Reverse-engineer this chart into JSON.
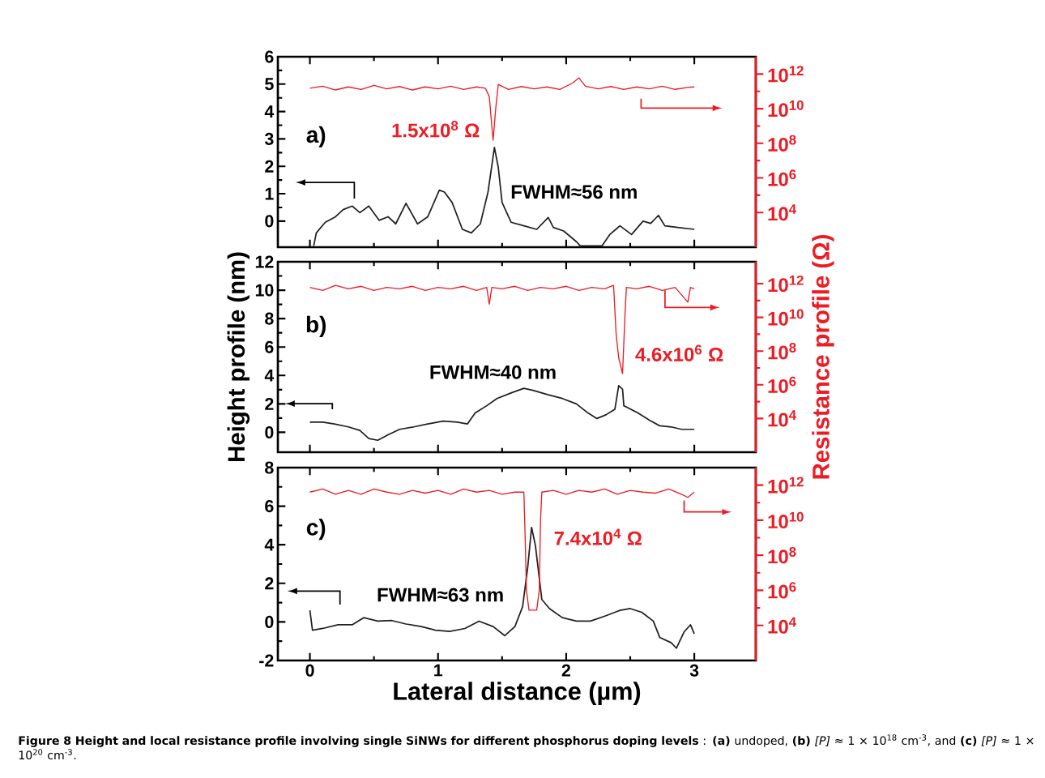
{
  "chart_data": [
    {
      "type": "line",
      "log": "y2",
      "xlim": [
        -0.25,
        3.48
      ],
      "xticks": [
        0,
        1,
        2,
        3
      ],
      "ylim": [
        -0.95,
        6
      ],
      "yticks": [
        0,
        1,
        2,
        3,
        4,
        5,
        6
      ],
      "y2lim": [
        100,
        10000000000000.0
      ],
      "y2ticks": [
        {
          "value": 10000,
          "label": "10$^{4}$"
        },
        {
          "value": 1000000,
          "label": "10$^{6}$"
        },
        {
          "value": 100000000,
          "label": "10$^{8}$"
        },
        {
          "value": 10000000000,
          "label": "10$^{10}$"
        },
        {
          "value": 1000000000000,
          "label": "10$^{12}$"
        }
      ],
      "tick_labels": "y",
      "marker": "none",
      "grid": false,
      "annotations": [
        "a)",
        "1.5x10$^{8}$ Ω",
        "FWHM≈56 nm"
      ],
      "series": [
        {
          "color": "#231f20",
          "x": [
            0.03,
            0.05,
            0.12,
            0.2,
            0.26,
            0.33,
            0.39,
            0.46,
            0.54,
            0.61,
            0.67,
            0.75,
            0.84,
            0.92,
            1.01,
            1.05,
            1.11,
            1.19,
            1.26,
            1.33,
            1.39,
            1.44,
            1.47,
            1.5,
            1.57,
            1.67,
            1.77,
            1.86,
            1.9,
            1.98,
            2.08,
            2.11,
            2.28,
            2.34,
            2.42,
            2.51,
            2.6,
            2.66,
            2.72,
            2.77,
            2.87,
            3.0
          ],
          "values": [
            -0.9,
            -0.43,
            -0.04,
            0.16,
            0.42,
            0.55,
            0.31,
            0.55,
            0.03,
            0.16,
            -0.1,
            0.65,
            -0.1,
            0.16,
            1.13,
            1.06,
            0.68,
            -0.3,
            -0.43,
            -0.1,
            1.06,
            2.69,
            1.97,
            0.68,
            -0.04,
            -0.17,
            -0.3,
            0.13,
            -0.23,
            -0.36,
            -0.75,
            -0.9,
            -0.9,
            -0.49,
            -0.17,
            -0.49,
            0,
            -0.08,
            0.21,
            -0.17,
            -0.23,
            -0.3
          ]
        },
        {
          "color": "#ed1c24",
          "axis": "y2",
          "x": [
            0,
            0.1,
            0.2,
            0.3,
            0.4,
            0.5,
            0.6,
            0.7,
            0.8,
            0.9,
            1.0,
            1.1,
            1.2,
            1.3,
            1.37,
            1.4,
            1.42,
            1.43,
            1.45,
            1.47,
            1.55,
            1.65,
            1.75,
            1.85,
            1.95,
            2.05,
            2.1,
            2.15,
            2.25,
            2.35,
            2.45,
            2.55,
            2.65,
            2.75,
            2.85,
            2.95,
            3.0
          ],
          "values": [
            150000000000.0,
            200000000000.0,
            120000000000.0,
            180000000000.0,
            130000000000.0,
            220000000000.0,
            140000000000.0,
            190000000000.0,
            120000000000.0,
            180000000000.0,
            140000000000.0,
            200000000000.0,
            130000000000.0,
            180000000000.0,
            150000000000.0,
            50000000000.0,
            1000000000.0,
            150000000.0,
            10000000000.0,
            250000000000.0,
            130000000000.0,
            190000000000.0,
            140000000000.0,
            180000000000.0,
            130000000000.0,
            300000000000.0,
            600000000000.0,
            200000000000.0,
            140000000000.0,
            190000000000.0,
            130000000000.0,
            180000000000.0,
            140000000000.0,
            200000000000.0,
            130000000000.0,
            170000000000.0,
            180000000000.0
          ]
        }
      ]
    },
    {
      "type": "line",
      "log": "y2",
      "xlim": [
        -0.25,
        3.48
      ],
      "xticks": [
        0,
        1,
        2,
        3
      ],
      "ylim": [
        -1.4,
        12
      ],
      "yticks": [
        0,
        2,
        4,
        6,
        8,
        10,
        12
      ],
      "y2lim": [
        100,
        20000000000000.0
      ],
      "y2ticks": [
        {
          "value": 10000,
          "label": "10$^{4}$"
        },
        {
          "value": 1000000,
          "label": "10$^{6}$"
        },
        {
          "value": 100000000,
          "label": "10$^{8}$"
        },
        {
          "value": 10000000000,
          "label": "10$^{10}$"
        },
        {
          "value": 1000000000000,
          "label": "10$^{12}$"
        }
      ],
      "tick_labels": "y",
      "marker": "none",
      "grid": false,
      "ylabel": "Height profile (nm)",
      "y2label": "Resistance profile (Ω)",
      "annotations": [
        "b)",
        "4.6x10$^{6}$ Ω",
        "FWHM≈40 nm"
      ],
      "series": [
        {
          "color": "#231f20",
          "x": [
            0,
            0.1,
            0.19,
            0.3,
            0.39,
            0.46,
            0.53,
            0.61,
            0.7,
            0.81,
            0.92,
            1.04,
            1.15,
            1.23,
            1.29,
            1.38,
            1.46,
            1.57,
            1.67,
            1.74,
            1.86,
            1.97,
            2.08,
            2.17,
            2.24,
            2.31,
            2.38,
            2.41,
            2.44,
            2.45,
            2.48,
            2.56,
            2.65,
            2.73,
            2.82,
            2.9,
            3.0
          ],
          "values": [
            0.72,
            0.72,
            0.59,
            0.38,
            0.13,
            -0.44,
            -0.56,
            -0.18,
            0.21,
            0.38,
            0.59,
            0.79,
            0.72,
            0.59,
            1.36,
            1.87,
            2.38,
            2.77,
            3.1,
            2.95,
            2.64,
            2.38,
            2,
            1.36,
            0.97,
            1.23,
            1.62,
            3.28,
            3.03,
            1.87,
            1.74,
            1.36,
            0.85,
            0.46,
            0.38,
            0.21,
            0.21
          ]
        },
        {
          "color": "#ed1c24",
          "axis": "y2",
          "x": [
            0,
            0.1,
            0.2,
            0.3,
            0.4,
            0.5,
            0.6,
            0.7,
            0.8,
            0.9,
            1.0,
            1.1,
            1.2,
            1.3,
            1.38,
            1.4,
            1.42,
            1.5,
            1.6,
            1.7,
            1.8,
            1.9,
            2.0,
            2.1,
            2.2,
            2.3,
            2.37,
            2.39,
            2.41,
            2.44,
            2.46,
            2.47,
            2.55,
            2.65,
            2.75,
            2.85,
            2.95,
            2.97,
            3.0
          ],
          "values": [
            600000000000.0,
            400000000000.0,
            800000000000.0,
            500000000000.0,
            700000000000.0,
            400000000000.0,
            600000000000.0,
            500000000000.0,
            700000000000.0,
            400000000000.0,
            600000000000.0,
            500000000000.0,
            700000000000.0,
            400000000000.0,
            600000000000.0,
            60000000000.0,
            600000000000.0,
            500000000000.0,
            700000000000.0,
            400000000000.0,
            600000000000.0,
            500000000000.0,
            700000000000.0,
            400000000000.0,
            600000000000.0,
            500000000000.0,
            800000000000.0,
            1000000000.0,
            40000000.0,
            4600000.0,
            20000000000.0,
            600000000000.0,
            500000000000.0,
            700000000000.0,
            400000000000.0,
            600000000000.0,
            80000000000.0,
            600000000000.0,
            500000000000.0
          ]
        }
      ]
    },
    {
      "type": "line",
      "log": "y2",
      "xlim": [
        -0.25,
        3.48
      ],
      "xticks": [
        0,
        1,
        2,
        3
      ],
      "ylim": [
        -2,
        8
      ],
      "yticks": [
        -2,
        0,
        2,
        4,
        6,
        8
      ],
      "y2lim": [
        100,
        10000000000000.0
      ],
      "y2ticks": [
        {
          "value": 10000,
          "label": "10$^{4}$"
        },
        {
          "value": 1000000,
          "label": "10$^{6}$"
        },
        {
          "value": 100000000,
          "label": "10$^{8}$"
        },
        {
          "value": 10000000000,
          "label": "10$^{10}$"
        },
        {
          "value": 1000000000000,
          "label": "10$^{12}$"
        }
      ],
      "marker": "none",
      "grid": false,
      "xlabel": "Lateral distance (µm)",
      "annotations": [
        "c)",
        "7.4x10$^{4}$ Ω",
        "FWHM≈63 nm",
        "**Figure 8 Height and local resistance profile involving single SiNWs for different phosphorus doping levels** : **(a)** undoped, **(b)** *[P]* ≈ 1 × 10$^{18}$ cm$^{-3}$, and **(c)** *[P]* ≈ 1 × 10$^{20}$ cm$^{-3}$."
      ],
      "series": [
        {
          "color": "#231f20",
          "x": [
            0,
            0.02,
            0.1,
            0.22,
            0.33,
            0.42,
            0.53,
            0.64,
            0.75,
            0.87,
            0.98,
            1.09,
            1.21,
            1.32,
            1.43,
            1.52,
            1.6,
            1.66,
            1.7,
            1.73,
            1.76,
            1.79,
            1.81,
            1.87,
            1.97,
            2.08,
            2.19,
            2.31,
            2.42,
            2.5,
            2.59,
            2.68,
            2.73,
            2.82,
            2.86,
            2.92,
            2.97,
            3.0
          ],
          "values": [
            0.6,
            -0.43,
            -0.34,
            -0.15,
            -0.15,
            0.22,
            0.04,
            0.07,
            -0.11,
            -0.24,
            -0.43,
            -0.49,
            -0.34,
            0.04,
            -0.24,
            -0.71,
            -0.24,
            0.79,
            2.84,
            4.9,
            3.96,
            2.28,
            1.16,
            0.69,
            0.22,
            0.04,
            0.04,
            0.32,
            0.6,
            0.69,
            0.5,
            0.04,
            -0.8,
            -1.08,
            -1.36,
            -0.52,
            -0.15,
            -0.62
          ]
        },
        {
          "color": "#ed1c24",
          "axis": "y2",
          "x": [
            0,
            0.1,
            0.2,
            0.3,
            0.4,
            0.5,
            0.6,
            0.7,
            0.8,
            0.9,
            1.0,
            1.1,
            1.2,
            1.3,
            1.4,
            1.5,
            1.6,
            1.67,
            1.68,
            1.69,
            1.71,
            1.77,
            1.79,
            1.8,
            1.81,
            1.9,
            2.0,
            2.1,
            2.2,
            2.3,
            2.4,
            2.5,
            2.6,
            2.7,
            2.8,
            2.9,
            2.95,
            3.0
          ],
          "values": [
            400000000000.0,
            600000000000.0,
            300000000000.0,
            500000000000.0,
            300000000000.0,
            600000000000.0,
            400000000000.0,
            300000000000.0,
            500000000000.0,
            350000000000.0,
            500000000000.0,
            300000000000.0,
            600000000000.0,
            400000000000.0,
            500000000000.0,
            300000000000.0,
            400000000000.0,
            400000000000.0,
            1000000000.0,
            1000000.0,
            74000.0,
            74000.0,
            1000000.0,
            10000000000.0,
            400000000000.0,
            500000000000.0,
            300000000000.0,
            500000000000.0,
            400000000000.0,
            600000000000.0,
            300000000000.0,
            500000000000.0,
            400000000000.0,
            350000000000.0,
            600000000000.0,
            300000000000.0,
            200000000000.0,
            400000000000.0
          ]
        }
      ]
    }
  ]
}
